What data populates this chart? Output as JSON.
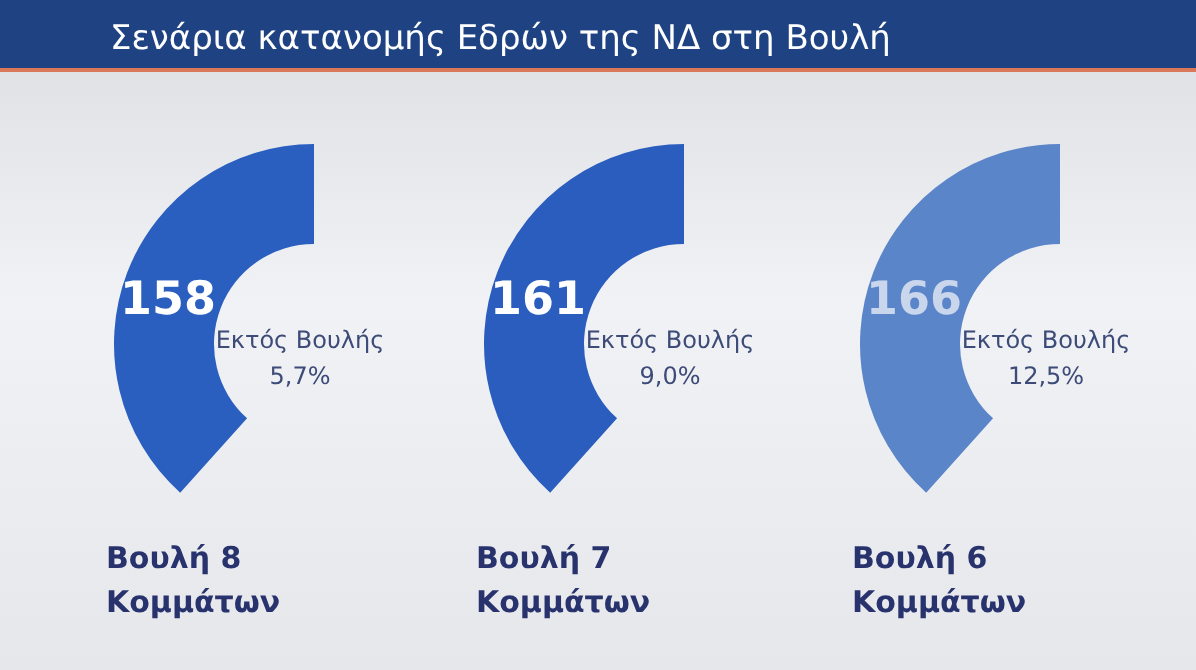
{
  "chart_data": {
    "type": "other",
    "title": "Σενάρια κατανομής Εδρών της ΝΔ στη Βουλή",
    "categories": [
      "Βουλή 8\nΚομμάτων",
      "Βουλή 7\nΚομμάτων",
      "Βουλή 6\nΚομμάτων"
    ],
    "data_labels": true,
    "series": [
      {
        "colors": [
          "#2a5fc0",
          "#2a5dbe",
          "#5b85c9"
        ],
        "values": [
          158,
          161,
          166
        ]
      },
      {
        "name": "Εκτός Βουλής",
        "color": "#3d4b78",
        "values": [
          5.7,
          9.0,
          12.5
        ],
        "value_labels": [
          "5,7%",
          "9,0%",
          "12,5%"
        ]
      }
    ]
  }
}
